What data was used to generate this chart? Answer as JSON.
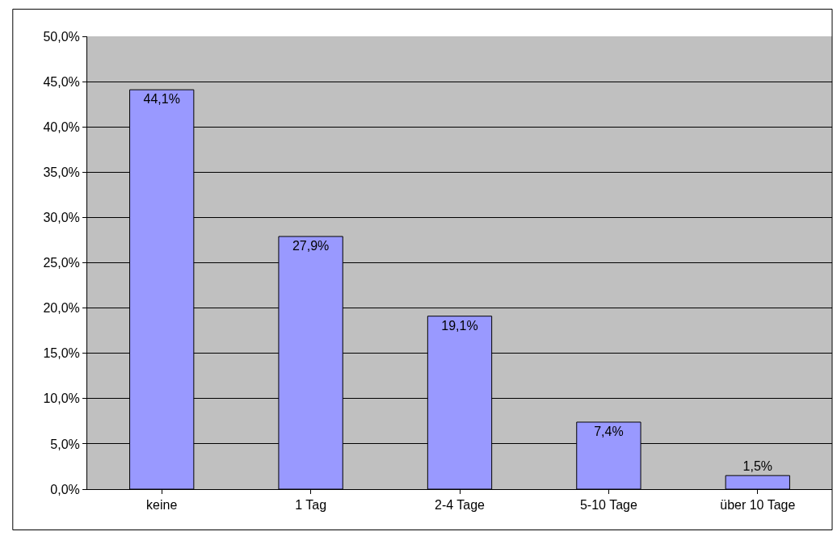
{
  "chart_data": {
    "type": "bar",
    "categories": [
      "keine",
      "1 Tag",
      "2-4 Tage",
      "5-10 Tage",
      "über 10 Tage"
    ],
    "values": [
      44.1,
      27.9,
      19.1,
      7.4,
      1.5
    ],
    "value_labels": [
      "44,1%",
      "27,9%",
      "19,1%",
      "7,4%",
      "1,5%"
    ],
    "color": "#9999ff",
    "ylim": [
      0,
      50
    ],
    "yticks": [
      {
        "value": 0,
        "label": "0,0%"
      },
      {
        "value": 5,
        "label": "5,0%"
      },
      {
        "value": 10,
        "label": "10,0%"
      },
      {
        "value": 15,
        "label": "15,0%"
      },
      {
        "value": 20,
        "label": "20,0%"
      },
      {
        "value": 25,
        "label": "25,0%"
      },
      {
        "value": 30,
        "label": "30,0%"
      },
      {
        "value": 35,
        "label": "35,0%"
      },
      {
        "value": 40,
        "label": "40,0%"
      },
      {
        "value": 45,
        "label": "45,0%"
      },
      {
        "value": 50,
        "label": "50,0%"
      }
    ],
    "grid": "y",
    "legend": false
  }
}
